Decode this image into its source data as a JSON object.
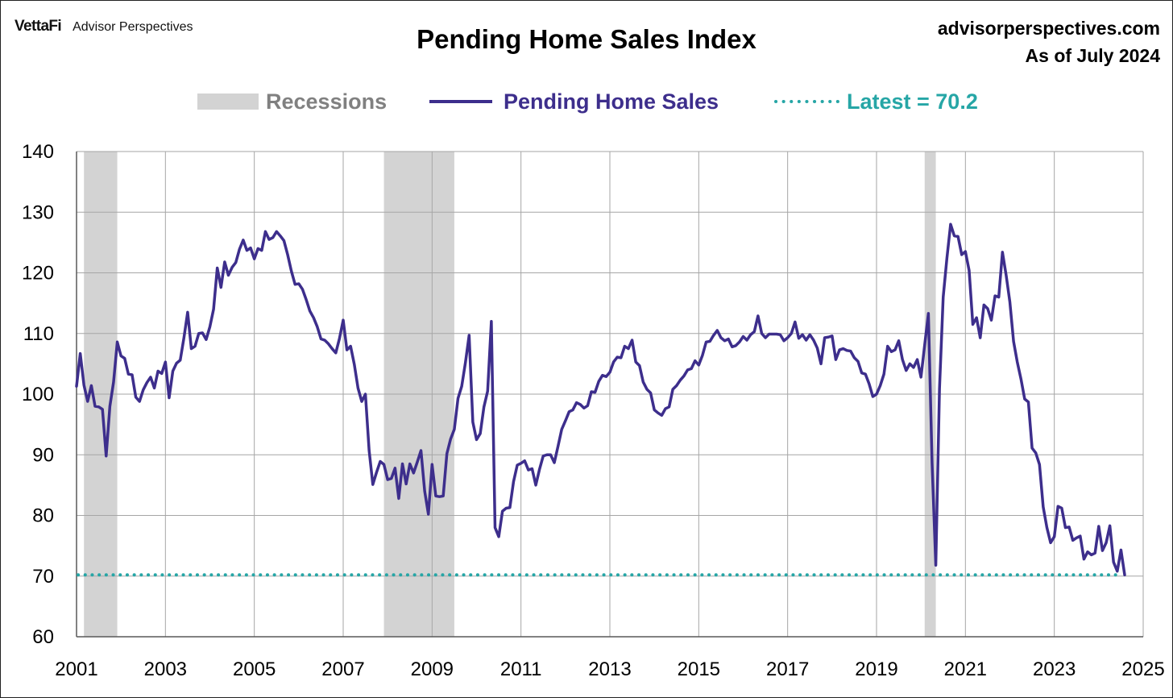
{
  "header": {
    "brand_logo": "VettaFi",
    "brand_name": "Advisor Perspectives",
    "site": "advisorperspectives.com",
    "as_of": "As of July 2024"
  },
  "colors": {
    "series": "#3d2e8c",
    "latest": "#26a6a6",
    "recession": "#d3d3d3",
    "recession_text": "#808080",
    "grid": "#a6a6a6"
  },
  "chart_data": {
    "type": "line",
    "title": "Pending Home Sales Index",
    "xlabel": "",
    "ylabel": "",
    "xlim": [
      2001,
      2025
    ],
    "ylim": [
      60,
      140
    ],
    "x_ticks": [
      "2001",
      "2003",
      "2005",
      "2007",
      "2009",
      "2011",
      "2013",
      "2015",
      "2017",
      "2019",
      "2021",
      "2023",
      "2025"
    ],
    "y_ticks": [
      "60",
      "70",
      "80",
      "90",
      "100",
      "110",
      "120",
      "130",
      "140"
    ],
    "grid": true,
    "legend": {
      "placement": "top-center",
      "recessions": "Recessions",
      "series": "Pending Home Sales",
      "latest": "Latest = 70.2"
    },
    "recessions": [
      {
        "start": "2001-03",
        "end": "2001-11"
      },
      {
        "start": "2007-12",
        "end": "2009-06"
      },
      {
        "start": "2020-02",
        "end": "2020-04"
      }
    ],
    "latest_value": 70.2,
    "series": [
      {
        "name": "Pending Home Sales",
        "x_start": "2001-01",
        "frequency": "monthly",
        "values": [
          101.3,
          106.7,
          101.5,
          98.8,
          101.4,
          98.0,
          97.9,
          97.5,
          89.8,
          98.0,
          102.0,
          108.6,
          106.3,
          105.9,
          103.3,
          103.2,
          99.5,
          98.8,
          100.7,
          101.9,
          102.8,
          101.0,
          103.8,
          103.4,
          105.3,
          99.4,
          103.8,
          105.1,
          105.6,
          109.3,
          113.5,
          107.5,
          107.9,
          110.0,
          110.1,
          109.0,
          111.1,
          114.0,
          120.8,
          117.6,
          121.8,
          119.6,
          120.9,
          121.7,
          123.9,
          125.4,
          123.7,
          124.1,
          122.3,
          124.0,
          123.7,
          126.8,
          125.5,
          125.8,
          126.8,
          126.1,
          125.3,
          123.0,
          120.3,
          118.1,
          118.2,
          117.3,
          115.6,
          113.7,
          112.6,
          111.1,
          109.1,
          108.9,
          108.3,
          107.5,
          106.8,
          109.2,
          112.2,
          107.3,
          107.9,
          104.9,
          101.0,
          98.8,
          100.0,
          90.7,
          85.1,
          87.1,
          88.9,
          88.4,
          85.9,
          86.1,
          87.8,
          82.8,
          88.5,
          85.2,
          88.5,
          87.0,
          88.8,
          90.7,
          84.0,
          80.2,
          88.4,
          83.2,
          83.1,
          83.2,
          90.2,
          92.6,
          94.2,
          99.3,
          101.3,
          105.2,
          109.7,
          95.4,
          92.5,
          93.5,
          97.9,
          100.5,
          112.0,
          78.0,
          76.5,
          80.7,
          81.2,
          81.3,
          85.6,
          88.3,
          88.6,
          89.0,
          87.5,
          87.7,
          85.0,
          87.6,
          89.8,
          90.0,
          90.0,
          88.7,
          91.4,
          94.2,
          95.6,
          97.1,
          97.4,
          98.6,
          98.3,
          97.7,
          98.1,
          100.4,
          100.3,
          102.1,
          103.1,
          102.9,
          103.6,
          105.3,
          106.1,
          106.0,
          107.9,
          107.5,
          108.9,
          105.3,
          104.7,
          102.0,
          100.8,
          100.2,
          97.4,
          96.9,
          96.5,
          97.6,
          97.9,
          100.8,
          101.4,
          102.3,
          103.0,
          104.0,
          104.2,
          105.5,
          104.8,
          106.4,
          108.6,
          108.7,
          109.7,
          110.5,
          109.3,
          108.8,
          109.1,
          107.8,
          108.0,
          108.6,
          109.5,
          108.9,
          109.8,
          110.3,
          112.9,
          110.0,
          109.3,
          109.9,
          109.9,
          109.9,
          109.8,
          108.8,
          109.3,
          110.0,
          111.9,
          109.2,
          109.8,
          108.9,
          109.8,
          108.9,
          107.6,
          105.0,
          109.3,
          109.4,
          109.6,
          105.7,
          107.3,
          107.5,
          107.2,
          107.1,
          106.0,
          105.4,
          103.5,
          103.3,
          101.7,
          99.6,
          100.0,
          101.4,
          103.3,
          107.9,
          107.0,
          107.3,
          108.8,
          105.7,
          103.9,
          105.0,
          104.4,
          105.7,
          102.8,
          108.1,
          113.3,
          88.6,
          71.8,
          100.9,
          116.0,
          122.4,
          128.0,
          126.1,
          126.0,
          123.0,
          123.5,
          120.4,
          111.5,
          112.6,
          109.3,
          114.7,
          114.1,
          112.2,
          116.2,
          116.0,
          123.4,
          119.6,
          115.2,
          108.7,
          105.3,
          102.5,
          99.2,
          98.7,
          91.1,
          90.3,
          88.4,
          81.4,
          78.0,
          75.5,
          76.5,
          81.5,
          81.2,
          78.0,
          78.1,
          75.9,
          76.3,
          76.6,
          72.8,
          74.0,
          73.5,
          73.8,
          78.2,
          74.2,
          75.5,
          78.3,
          72.3,
          70.8,
          74.3,
          70.2
        ]
      }
    ]
  }
}
